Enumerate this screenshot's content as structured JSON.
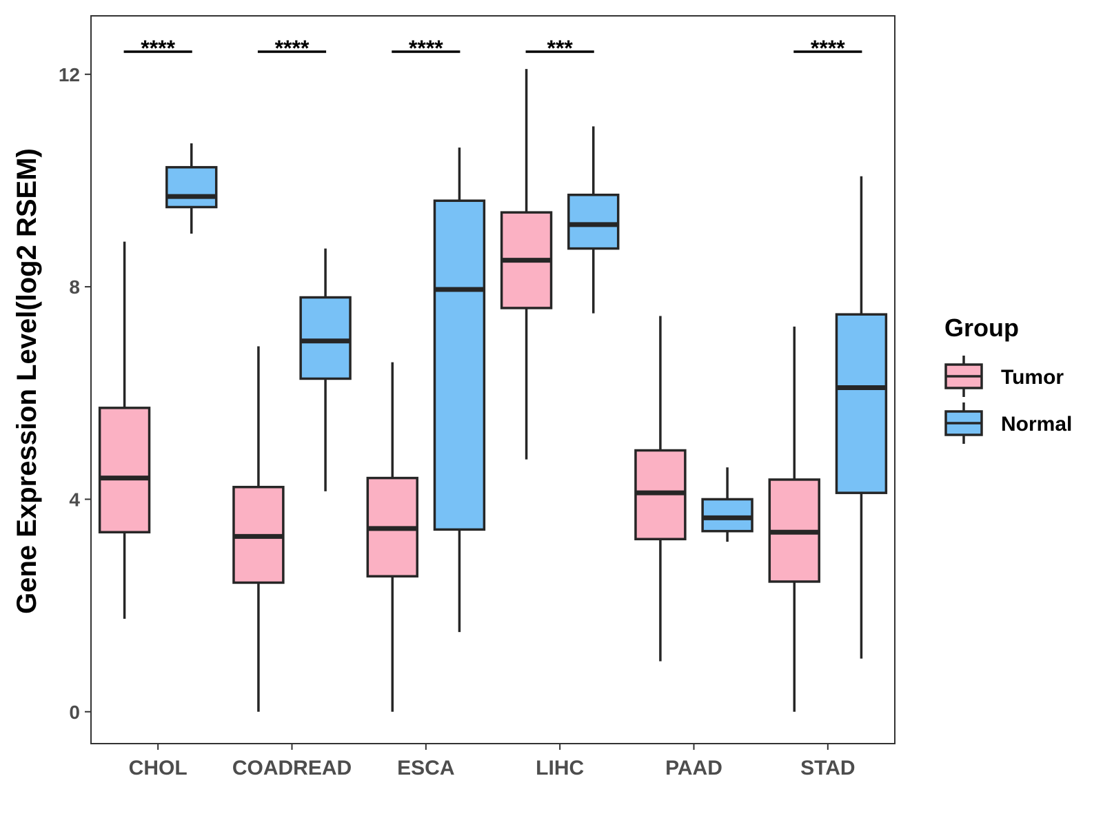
{
  "chart_data": {
    "type": "boxplot",
    "title": "",
    "xlabel": "",
    "ylabel": "Gene Expression Level(log2 RSEM)",
    "ylim": [
      -0.6,
      13.1
    ],
    "yticks": [
      0,
      4,
      8,
      12
    ],
    "categories": [
      "CHOL",
      "COADREAD",
      "ESCA",
      "LIHC",
      "PAAD",
      "STAD"
    ],
    "legend": {
      "title": "Group",
      "position": "right",
      "entries": [
        {
          "name": "Tumor",
          "color": "#FBB1C3"
        },
        {
          "name": "Normal",
          "color": "#78C1F6"
        }
      ]
    },
    "series": [
      {
        "name": "Tumor",
        "color": "#FBB1C3",
        "boxes": [
          {
            "min": 1.75,
            "q1": 3.38,
            "median": 4.4,
            "q3": 5.72,
            "max": 8.85
          },
          {
            "min": 0.0,
            "q1": 2.43,
            "median": 3.3,
            "q3": 4.23,
            "max": 6.88
          },
          {
            "min": 0.0,
            "q1": 2.55,
            "median": 3.45,
            "q3": 4.4,
            "max": 6.58
          },
          {
            "min": 4.75,
            "q1": 7.6,
            "median": 8.5,
            "q3": 9.4,
            "max": 12.1
          },
          {
            "min": 0.95,
            "q1": 3.25,
            "median": 4.12,
            "q3": 4.92,
            "max": 7.45
          },
          {
            "min": 0.0,
            "q1": 2.45,
            "median": 3.38,
            "q3": 4.37,
            "max": 7.25
          }
        ]
      },
      {
        "name": "Normal",
        "color": "#78C1F6",
        "boxes": [
          {
            "min": 9.0,
            "q1": 9.5,
            "median": 9.7,
            "q3": 10.25,
            "max": 10.7
          },
          {
            "min": 4.15,
            "q1": 6.27,
            "median": 6.98,
            "q3": 7.8,
            "max": 8.72
          },
          {
            "min": 1.5,
            "q1": 3.43,
            "median": 7.95,
            "q3": 9.62,
            "max": 10.62
          },
          {
            "min": 7.5,
            "q1": 8.72,
            "median": 9.17,
            "q3": 9.73,
            "max": 11.02
          },
          {
            "min": 3.2,
            "q1": 3.4,
            "median": 3.65,
            "q3": 4.0,
            "max": 4.6
          },
          {
            "min": 1.0,
            "q1": 4.12,
            "median": 6.1,
            "q3": 7.48,
            "max": 10.08
          }
        ]
      }
    ],
    "significance": [
      "****",
      "****",
      "****",
      "***",
      "",
      "****"
    ]
  }
}
